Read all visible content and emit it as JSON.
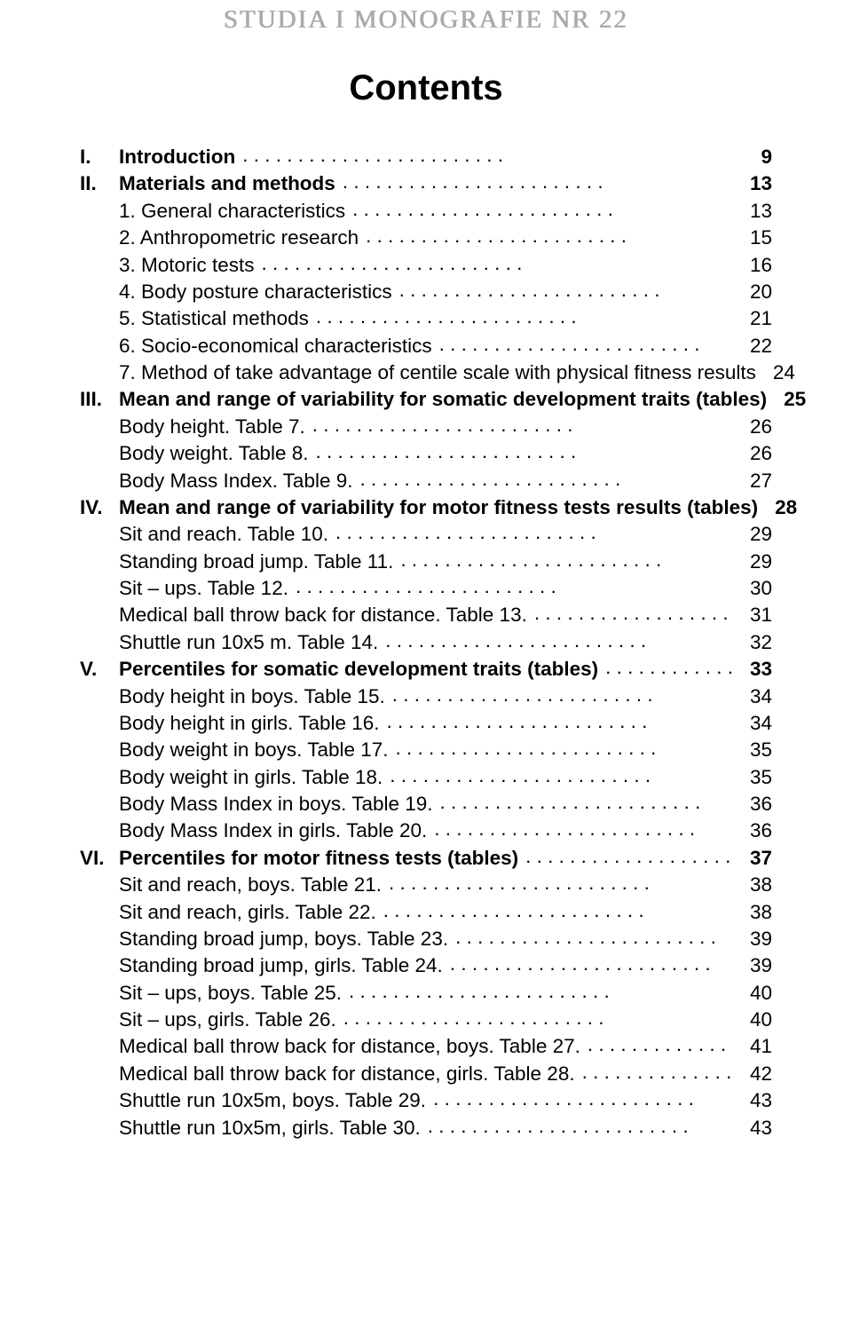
{
  "running_head": "STUDIA I MONOGRAFIE NR 22",
  "title": "Contents",
  "font": {
    "body_family": "Arial",
    "body_size_pt": 17,
    "title_size_pt": 30,
    "head_size_pt": 22,
    "head_color": "#aaaaaa",
    "text_color": "#000000",
    "background": "#ffffff"
  },
  "entries": [
    {
      "marker": "I.",
      "label": "Introduction",
      "page": "9",
      "bold": true
    },
    {
      "marker": "II.",
      "label": "Materials and methods",
      "page": "13",
      "bold": true
    },
    {
      "marker": "",
      "label": "1. General characteristics",
      "page": "13",
      "bold": false
    },
    {
      "marker": "",
      "label": "2. Anthropometric research",
      "page": "15",
      "bold": false
    },
    {
      "marker": "",
      "label": "3. Motoric tests",
      "page": "16",
      "bold": false
    },
    {
      "marker": "",
      "label": "4. Body posture characteristics",
      "page": "20",
      "bold": false
    },
    {
      "marker": "",
      "label": "5. Statistical methods",
      "page": "21",
      "bold": false
    },
    {
      "marker": "",
      "label": "6. Socio-economical characteristics",
      "page": "22",
      "bold": false
    },
    {
      "marker": "",
      "label": "7. Method of take advantage of centile scale with physical fitness results",
      "page": "24",
      "bold": false,
      "noleader": true
    },
    {
      "marker": "III.",
      "label": "Mean and range of variability for somatic development traits (tables)",
      "page": "25",
      "bold": true,
      "noleader": true
    },
    {
      "marker": "",
      "label": "Body height. Table 7.",
      "page": "26",
      "bold": false
    },
    {
      "marker": "",
      "label": "Body weight. Table 8.",
      "page": "26",
      "bold": false
    },
    {
      "marker": "",
      "label": "Body Mass Index. Table 9.",
      "page": "27",
      "bold": false
    },
    {
      "marker": "IV.",
      "label": "Mean and range of variability for motor fitness tests results (tables)",
      "page": "28",
      "bold": true,
      "noleader": true
    },
    {
      "marker": "",
      "label": "Sit and reach. Table 10.",
      "page": "29",
      "bold": false
    },
    {
      "marker": "",
      "label": "Standing broad jump. Table 11.",
      "page": "29",
      "bold": false
    },
    {
      "marker": "",
      "label": "Sit – ups. Table 12.",
      "page": "30",
      "bold": false
    },
    {
      "marker": "",
      "label": "Medical ball throw back for distance. Table 13.",
      "page": "31",
      "bold": false
    },
    {
      "marker": "",
      "label": "Shuttle run 10x5 m. Table 14.",
      "page": "32",
      "bold": false
    },
    {
      "marker": "V.",
      "label": "Percentiles for somatic development traits (tables)",
      "page": "33",
      "bold": true
    },
    {
      "marker": "",
      "label": "Body height in boys. Table 15.",
      "page": "34",
      "bold": false
    },
    {
      "marker": "",
      "label": "Body height in girls. Table 16.",
      "page": "34",
      "bold": false
    },
    {
      "marker": "",
      "label": "Body weight in boys. Table 17.",
      "page": "35",
      "bold": false
    },
    {
      "marker": "",
      "label": "Body weight in girls. Table 18.",
      "page": "35",
      "bold": false
    },
    {
      "marker": "",
      "label": "Body Mass Index in boys. Table 19.",
      "page": "36",
      "bold": false
    },
    {
      "marker": "",
      "label": "Body Mass Index in girls. Table 20.",
      "page": "36",
      "bold": false
    },
    {
      "marker": "VI.",
      "label": "Percentiles for motor fitness tests (tables)",
      "page": "37",
      "bold": true
    },
    {
      "marker": "",
      "label": "Sit and reach, boys. Table 21.",
      "page": "38",
      "bold": false
    },
    {
      "marker": "",
      "label": "Sit and reach, girls. Table 22.",
      "page": "38",
      "bold": false
    },
    {
      "marker": "",
      "label": "Standing broad jump, boys. Table 23.",
      "page": "39",
      "bold": false
    },
    {
      "marker": "",
      "label": "Standing broad jump, girls. Table 24.",
      "page": "39",
      "bold": false
    },
    {
      "marker": "",
      "label": "Sit – ups, boys. Table 25.",
      "page": "40",
      "bold": false
    },
    {
      "marker": "",
      "label": "Sit – ups, girls. Table 26.",
      "page": "40",
      "bold": false
    },
    {
      "marker": "",
      "label": "Medical ball throw back for distance, boys. Table 27.",
      "page": "41",
      "bold": false
    },
    {
      "marker": "",
      "label": "Medical ball throw back for distance, girls. Table 28.",
      "page": "42",
      "bold": false
    },
    {
      "marker": "",
      "label": "Shuttle run 10x5m, boys. Table 29.",
      "page": "43",
      "bold": false
    },
    {
      "marker": "",
      "label": "Shuttle run 10x5m, girls. Table 30.",
      "page": "43",
      "bold": false
    }
  ]
}
